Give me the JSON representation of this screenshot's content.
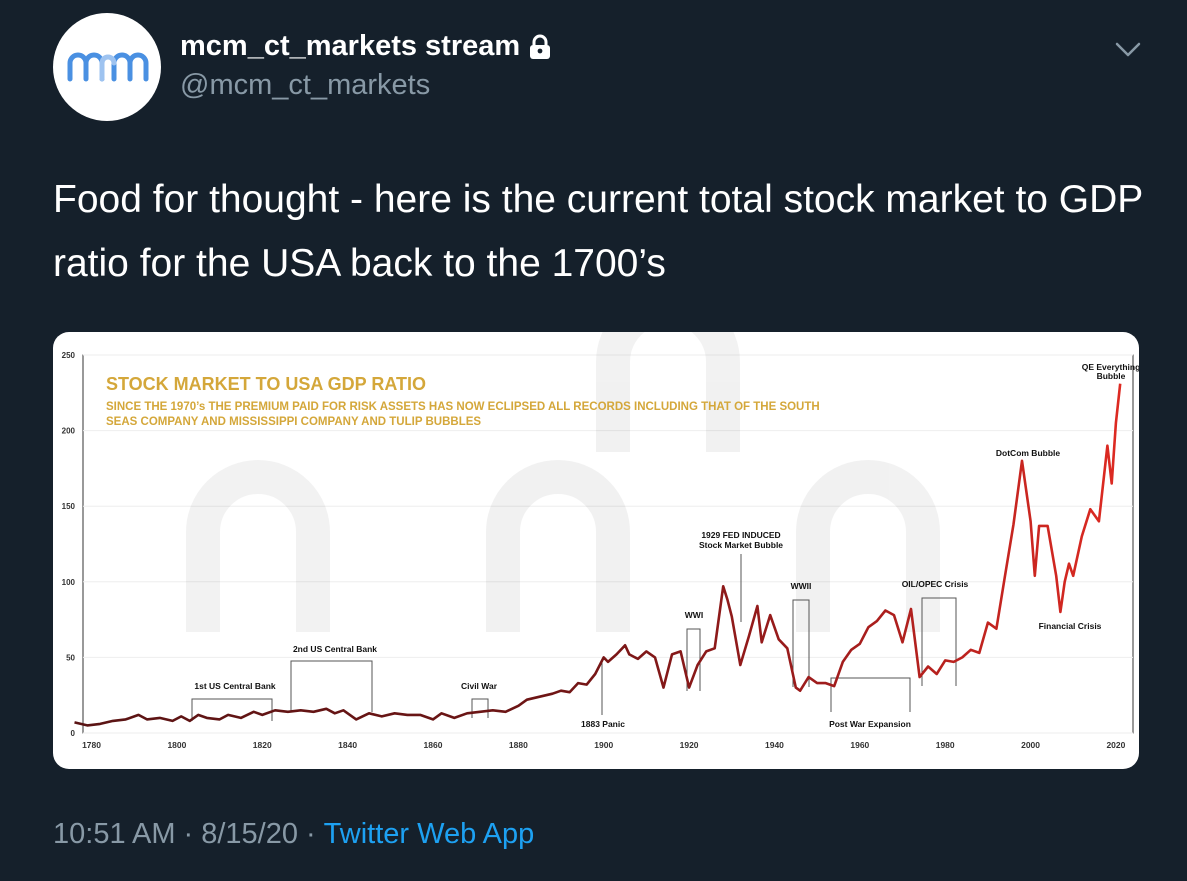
{
  "author": {
    "display_name": "mcm_ct_markets stream",
    "handle": "@mcm_ct_markets",
    "avatar_text": "mcm",
    "protected_icon": "lock-icon"
  },
  "tweet": {
    "text": "Food for thought - here is the current total stock market to GDP ratio for the USA back to the 1700’s"
  },
  "meta": {
    "time": "10:51 AM",
    "separator1": "·",
    "date": "8/15/20",
    "separator2": "·",
    "source": "Twitter Web App"
  },
  "colors": {
    "background": "#15202b",
    "secondary_text": "#8899a6",
    "link": "#1da1f2",
    "chart_title": "#d4a73a",
    "line_early": "#5a1414",
    "line_mid": "#8b1a1a",
    "line_late": "#d42a24"
  },
  "chart_data": {
    "type": "line",
    "title": "STOCK MARKET TO USA GDP RATIO",
    "subtitle_lines": [
      "SINCE THE 1970’s THE PREMIUM PAID FOR RISK ASSETS HAS NOW ECLIPSED ALL RECORDS INCLUDING THAT OF THE SOUTH",
      "SEAS COMPANY AND MISSISSIPPI COMPANY AND TULIP BUBBLES"
    ],
    "xlabel": "",
    "ylabel": "",
    "xlim": [
      1778,
      2024
    ],
    "ylim": [
      0,
      250
    ],
    "x_ticks": [
      "1780",
      "1800",
      "1820",
      "1840",
      "1860",
      "1880",
      "1900",
      "1920",
      "1940",
      "1960",
      "1980",
      "2000",
      "2020"
    ],
    "y_ticks": [
      "0",
      "50",
      "100",
      "150",
      "200",
      "250"
    ],
    "grid": true,
    "series": [
      {
        "x": [
          1776,
          1779,
          1782,
          1785,
          1788,
          1791,
          1793,
          1796,
          1799,
          1801,
          1803,
          1805,
          1807,
          1810,
          1812,
          1815,
          1818,
          1820,
          1823,
          1826,
          1829,
          1832,
          1835,
          1837,
          1839,
          1842,
          1845,
          1848,
          1851,
          1854,
          1857,
          1860,
          1862,
          1865,
          1868,
          1871,
          1874,
          1877,
          1880,
          1882,
          1885,
          1888,
          1890,
          1892,
          1894,
          1896,
          1898,
          1900,
          1901,
          1903,
          1905,
          1906,
          1908,
          1910,
          1912,
          1914,
          1916,
          1918,
          1920,
          1922,
          1924,
          1926,
          1928,
          1929,
          1930,
          1932,
          1934,
          1936,
          1937,
          1939,
          1941,
          1943,
          1945,
          1946,
          1948,
          1950,
          1952,
          1954,
          1956,
          1958,
          1960,
          1962,
          1964,
          1966,
          1968,
          1970,
          1972,
          1974,
          1976,
          1978,
          1980,
          1982,
          1984,
          1986,
          1988,
          1990,
          1992,
          1994,
          1996,
          1998,
          2000,
          2001,
          2002,
          2003,
          2004,
          2006,
          2007,
          2008,
          2009,
          2010,
          2012,
          2014,
          2016,
          2018,
          2019,
          2020,
          2021
        ],
        "values": [
          7,
          5,
          6,
          8,
          9,
          12,
          9,
          10,
          8,
          11,
          8,
          12,
          10,
          9,
          12,
          10,
          14,
          12,
          15,
          14,
          15,
          14,
          16,
          13,
          15,
          9,
          13,
          11,
          13,
          12,
          12,
          9,
          13,
          10,
          13,
          14,
          15,
          14,
          18,
          22,
          24,
          26,
          28,
          27,
          33,
          32,
          39,
          50,
          47,
          52,
          58,
          52,
          49,
          54,
          50,
          30,
          52,
          54,
          30,
          45,
          54,
          56,
          97,
          88,
          77,
          45,
          64,
          84,
          60,
          78,
          62,
          56,
          30,
          28,
          37,
          33,
          33,
          31,
          47,
          55,
          59,
          70,
          74,
          81,
          78,
          60,
          82,
          37,
          44,
          39,
          48,
          47,
          50,
          55,
          53,
          73,
          69,
          104,
          138,
          180,
          140,
          104,
          137,
          137,
          137,
          104,
          80,
          100,
          112,
          104,
          130,
          148,
          140,
          190,
          165,
          205,
          231
        ]
      }
    ],
    "annotations": [
      {
        "text": "1st US Central Bank"
      },
      {
        "text": "2nd US Central Bank"
      },
      {
        "text": "Civil War"
      },
      {
        "text": "1883 Panic"
      },
      {
        "text": "WWI"
      },
      {
        "text": "1929 FED INDUCED"
      },
      {
        "text": "Stock Market Bubble"
      },
      {
        "text": "WWII"
      },
      {
        "text": "Post War Expansion"
      },
      {
        "text": "OIL/OPEC Crisis"
      },
      {
        "text": "DotCom Bubble"
      },
      {
        "text": "Financial Crisis"
      },
      {
        "text": "QE Everything"
      },
      {
        "text": "Bubble"
      }
    ]
  }
}
